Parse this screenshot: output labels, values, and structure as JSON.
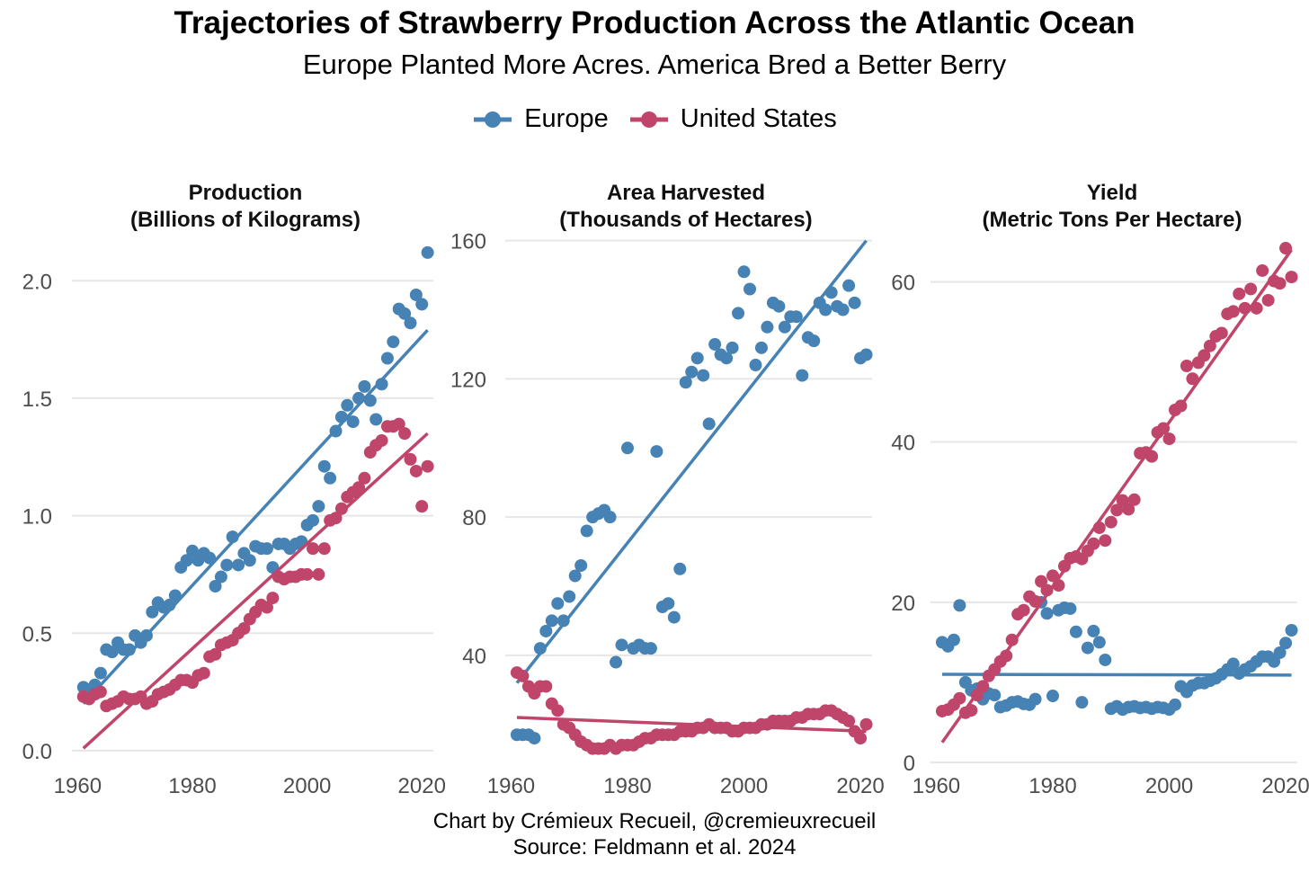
{
  "header": {
    "title": "Trajectories of Strawberry Production Across the Atlantic Ocean",
    "subtitle": "Europe Planted More Acres. America Bred a Better Berry"
  },
  "legend": {
    "items": [
      {
        "label": "Europe",
        "color": "#4682b4"
      },
      {
        "label": "United States",
        "color": "#c0456b"
      }
    ]
  },
  "caption": {
    "line1": "Chart by Crémieux Recueil, @cremieuxrecueil",
    "line2": "Source: Feldmann et al. 2024"
  },
  "chart_data": [
    {
      "type": "scatter",
      "title_line1": "Production",
      "title_line2": "(Billions of Kilograms)",
      "xlim": [
        1959,
        2022
      ],
      "ylim": [
        -0.05,
        2.2
      ],
      "x_ticks": [
        1960,
        1980,
        2000,
        2020
      ],
      "y_ticks": [
        0.0,
        0.5,
        1.0,
        1.5,
        2.0
      ],
      "y_tick_labels": [
        "0.0",
        "0.5",
        "1.0",
        "1.5",
        "2.0"
      ],
      "grid": "horizontal",
      "x": [
        1961,
        1962,
        1963,
        1964,
        1965,
        1966,
        1967,
        1968,
        1969,
        1970,
        1971,
        1972,
        1973,
        1974,
        1975,
        1976,
        1977,
        1978,
        1979,
        1980,
        1981,
        1982,
        1983,
        1984,
        1985,
        1986,
        1987,
        1988,
        1989,
        1990,
        1991,
        1992,
        1993,
        1994,
        1995,
        1996,
        1997,
        1998,
        1999,
        2000,
        2001,
        2002,
        2003,
        2004,
        2005,
        2006,
        2007,
        2008,
        2009,
        2010,
        2011,
        2012,
        2013,
        2014,
        2015,
        2016,
        2017,
        2018,
        2019,
        2020,
        2021
      ],
      "series": [
        {
          "name": "Europe",
          "color": "#4682b4",
          "values": [
            0.27,
            0.26,
            0.28,
            0.33,
            0.43,
            0.42,
            0.46,
            0.43,
            0.43,
            0.49,
            0.46,
            0.49,
            0.59,
            0.63,
            0.61,
            0.62,
            0.66,
            0.78,
            0.81,
            0.85,
            0.81,
            0.84,
            0.82,
            0.7,
            0.74,
            0.79,
            0.91,
            0.79,
            0.84,
            0.81,
            0.87,
            0.86,
            0.86,
            0.78,
            0.88,
            0.88,
            0.86,
            0.88,
            0.89,
            0.96,
            0.98,
            1.04,
            1.21,
            1.16,
            1.36,
            1.42,
            1.47,
            1.4,
            1.5,
            1.55,
            1.49,
            1.41,
            1.56,
            1.67,
            1.74,
            1.88,
            1.86,
            1.82,
            1.94,
            1.9,
            2.12
          ],
          "trend": [
            [
              1961,
              0.2
            ],
            [
              2021,
              1.79
            ]
          ]
        },
        {
          "name": "United States",
          "color": "#c0456b",
          "values": [
            0.23,
            0.22,
            0.24,
            0.25,
            0.19,
            0.2,
            0.21,
            0.23,
            0.22,
            0.22,
            0.23,
            0.2,
            0.21,
            0.24,
            0.25,
            0.26,
            0.28,
            0.3,
            0.3,
            0.29,
            0.32,
            0.33,
            0.4,
            0.41,
            0.45,
            0.46,
            0.47,
            0.5,
            0.52,
            0.56,
            0.59,
            0.62,
            0.61,
            0.65,
            0.74,
            0.73,
            0.74,
            0.74,
            0.75,
            0.75,
            0.86,
            0.75,
            0.86,
            0.98,
            0.99,
            1.03,
            1.08,
            1.1,
            1.12,
            1.16,
            1.27,
            1.3,
            1.32,
            1.38,
            1.38,
            1.39,
            1.35,
            1.24,
            1.19,
            1.04,
            1.21
          ],
          "trend": [
            [
              1961,
              0.01
            ],
            [
              2021,
              1.35
            ]
          ]
        }
      ]
    },
    {
      "type": "scatter",
      "title_line1": "Area Harvested",
      "title_line2": "(Thousands of Hectares)",
      "xlim": [
        1959,
        2022
      ],
      "ylim": [
        9,
        162
      ],
      "x_ticks": [
        1960,
        1980,
        2000,
        2020
      ],
      "y_ticks": [
        40,
        80,
        120,
        160
      ],
      "y_tick_labels": [
        "40",
        "80",
        "120",
        "160"
      ],
      "grid": "horizontal",
      "x": [
        1961,
        1962,
        1963,
        1964,
        1965,
        1966,
        1967,
        1968,
        1969,
        1970,
        1971,
        1972,
        1973,
        1974,
        1975,
        1976,
        1977,
        1978,
        1979,
        1980,
        1981,
        1982,
        1983,
        1984,
        1985,
        1986,
        1987,
        1988,
        1989,
        1990,
        1991,
        1992,
        1993,
        1994,
        1995,
        1996,
        1997,
        1998,
        1999,
        2000,
        2001,
        2002,
        2003,
        2004,
        2005,
        2006,
        2007,
        2008,
        2009,
        2010,
        2011,
        2012,
        2013,
        2014,
        2015,
        2016,
        2017,
        2018,
        2019,
        2020,
        2021
      ],
      "series": [
        {
          "name": "Europe",
          "color": "#4682b4",
          "values": [
            17,
            17,
            17,
            16,
            42,
            47,
            50,
            55,
            50,
            57,
            63,
            66,
            76,
            80,
            81,
            82,
            80,
            38,
            43,
            100,
            42,
            43,
            42,
            42,
            99,
            54,
            55,
            51,
            65,
            119,
            122,
            126,
            121,
            107,
            130,
            127,
            126,
            129,
            139,
            151,
            146,
            124,
            129,
            135,
            142,
            141,
            135,
            138,
            138,
            121,
            132,
            131,
            142,
            140,
            145,
            141,
            140,
            147,
            142,
            126,
            127
          ],
          "trend": [
            [
              1961,
              32
            ],
            [
              2021,
              160
            ]
          ]
        },
        {
          "name": "United States",
          "color": "#c0456b",
          "values": [
            35,
            34,
            31,
            29,
            31,
            31,
            26,
            24,
            20,
            19,
            17,
            15,
            14,
            13,
            13,
            13,
            14,
            13,
            14,
            14,
            14,
            15,
            16,
            16,
            17,
            17,
            17,
            17,
            18,
            18,
            18,
            19,
            19,
            20,
            19,
            19,
            19,
            18,
            18,
            19,
            19,
            19,
            20,
            20,
            21,
            21,
            21,
            21,
            22,
            22,
            23,
            23,
            23,
            24,
            24,
            23,
            22,
            21,
            18,
            16,
            20
          ],
          "trend": [
            [
              1961,
              22
            ],
            [
              2021,
              18
            ]
          ]
        }
      ]
    },
    {
      "type": "scatter",
      "title_line1": "Yield",
      "title_line2": "(Metric Tons Per Hectare)",
      "xlim": [
        1959,
        2022
      ],
      "ylim": [
        0,
        66
      ],
      "x_ticks": [
        1960,
        1980,
        2000,
        2020
      ],
      "y_ticks": [
        0,
        20,
        40,
        60
      ],
      "y_tick_labels": [
        "0",
        "20",
        "40",
        "60"
      ],
      "grid": "horizontal",
      "x": [
        1961,
        1962,
        1963,
        1964,
        1965,
        1966,
        1967,
        1968,
        1969,
        1970,
        1971,
        1972,
        1973,
        1974,
        1975,
        1976,
        1977,
        1978,
        1979,
        1980,
        1981,
        1982,
        1983,
        1984,
        1985,
        1986,
        1987,
        1988,
        1989,
        1990,
        1991,
        1992,
        1993,
        1994,
        1995,
        1996,
        1997,
        1998,
        1999,
        2000,
        2001,
        2002,
        2003,
        2004,
        2005,
        2006,
        2007,
        2008,
        2009,
        2010,
        2011,
        2012,
        2013,
        2014,
        2015,
        2016,
        2017,
        2018,
        2019,
        2020,
        2021
      ],
      "series": [
        {
          "name": "Europe",
          "color": "#4682b4",
          "values": [
            15.0,
            14.5,
            15.3,
            19.6,
            10.0,
            9.0,
            9.2,
            7.9,
            8.6,
            8.4,
            6.9,
            7.1,
            7.5,
            7.6,
            7.3,
            7.2,
            7.9,
            20.0,
            18.6,
            8.3,
            19.0,
            19.3,
            19.2,
            16.3,
            7.5,
            14.3,
            16.4,
            15.0,
            12.8,
            6.7,
            7.0,
            6.6,
            6.9,
            7.0,
            6.8,
            6.9,
            6.7,
            6.9,
            6.8,
            6.6,
            7.2,
            9.5,
            8.8,
            9.6,
            9.9,
            9.9,
            10.2,
            10.5,
            11.0,
            11.6,
            12.3,
            11.1,
            11.6,
            12.0,
            12.6,
            13.2,
            13.2,
            12.6,
            13.7,
            14.9,
            16.5
          ],
          "trend": [
            [
              1961,
              11.0
            ],
            [
              2021,
              10.9
            ]
          ]
        },
        {
          "name": "United States",
          "color": "#c0456b",
          "values": [
            6.4,
            6.6,
            7.2,
            8.0,
            6.2,
            6.5,
            8.4,
            9.5,
            10.8,
            11.6,
            12.6,
            13.3,
            15.3,
            18.5,
            19.0,
            20.7,
            20.1,
            22.6,
            21.5,
            23.3,
            22.1,
            24.5,
            25.5,
            25.7,
            25.4,
            26.4,
            27.3,
            29.3,
            27.7,
            30.0,
            31.5,
            32.7,
            31.6,
            32.8,
            38.6,
            38.7,
            38.2,
            41.2,
            41.7,
            40.4,
            44.0,
            44.5,
            49.5,
            47.9,
            49.9,
            50.8,
            52.0,
            53.2,
            53.6,
            56.0,
            56.3,
            58.5,
            56.7,
            59.1,
            56.7,
            61.4,
            57.7,
            60.1,
            59.8,
            64.2,
            60.6
          ],
          "trend": [
            [
              1961,
              2.5
            ],
            [
              2021,
              64.0
            ]
          ]
        }
      ]
    }
  ]
}
